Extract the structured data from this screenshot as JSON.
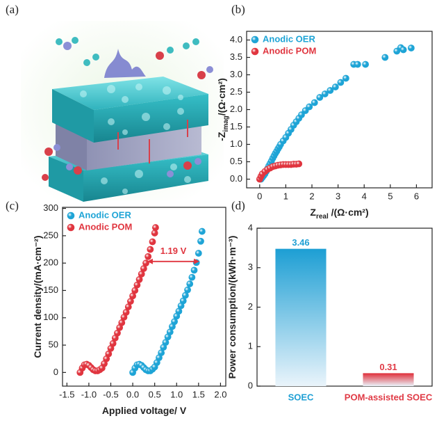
{
  "illustration": {
    "panel_label": "(a)"
  },
  "chart_data": [
    {
      "type": "scatter",
      "panel_label": "(b)",
      "x_label": [
        "Z",
        "real",
        " /(Ω·cm²)"
      ],
      "y_label": [
        "-Z",
        "imag",
        "/(Ω·cm²)"
      ],
      "xlim": [
        -0.5,
        6.6
      ],
      "xticks": [
        0,
        1,
        2,
        3,
        4,
        5,
        6
      ],
      "ylim": [
        -0.25,
        4.25
      ],
      "yticks": [
        {
          "value": 0,
          "label": "0.0"
        },
        {
          "value": 0.5,
          "label": "0.5"
        },
        {
          "value": 1,
          "label": "1.0"
        },
        {
          "value": 1.5,
          "label": "1.5"
        },
        {
          "value": 2,
          "label": "2.0"
        },
        {
          "value": 2.5,
          "label": "2.5"
        },
        {
          "value": 3,
          "label": "3.0"
        },
        {
          "value": 3.5,
          "label": "3.5"
        },
        {
          "value": 4,
          "label": "4.0"
        }
      ],
      "legend": "upper left",
      "series": [
        {
          "name": "Anodic OER",
          "color": "#1ea4d6",
          "x": [
            0.05,
            0.1,
            0.15,
            0.2,
            0.25,
            0.3,
            0.35,
            0.4,
            0.45,
            0.5,
            0.55,
            0.6,
            0.65,
            0.7,
            0.75,
            0.8,
            0.9,
            1.0,
            1.1,
            1.2,
            1.3,
            1.4,
            1.5,
            1.6,
            1.75,
            1.9,
            2.1,
            2.3,
            2.5,
            2.7,
            2.9,
            3.1,
            3.3,
            3.6,
            3.75,
            4.05,
            4.8,
            5.25,
            5.4,
            5.5,
            5.8
          ],
          "values": [
            0.0,
            0.05,
            0.1,
            0.15,
            0.22,
            0.3,
            0.38,
            0.45,
            0.52,
            0.6,
            0.67,
            0.74,
            0.8,
            0.87,
            0.93,
            1.0,
            1.1,
            1.2,
            1.32,
            1.43,
            1.55,
            1.65,
            1.75,
            1.85,
            1.97,
            2.08,
            2.2,
            2.35,
            2.45,
            2.55,
            2.65,
            2.78,
            2.9,
            3.3,
            3.3,
            3.3,
            3.5,
            3.68,
            3.78,
            3.72,
            3.77
          ]
        },
        {
          "name": "Anodic POM",
          "color": "#e0353f",
          "x": [
            0.0,
            0.05,
            0.1,
            0.2,
            0.3,
            0.4,
            0.5,
            0.6,
            0.7,
            0.8,
            0.9,
            1.0,
            1.1,
            1.2,
            1.3,
            1.4,
            1.5
          ],
          "values": [
            0.0,
            0.08,
            0.15,
            0.22,
            0.28,
            0.32,
            0.36,
            0.38,
            0.4,
            0.41,
            0.42,
            0.42,
            0.42,
            0.42,
            0.43,
            0.43,
            0.44
          ]
        }
      ]
    },
    {
      "type": "scatter",
      "panel_label": "(c)",
      "x_label": [
        "Applied voltage/ V"
      ],
      "y_label": [
        "Current density/(mA·cm⁻²)"
      ],
      "xlim": [
        -1.6,
        2.12
      ],
      "xticks": [
        -1.5,
        {
          "value": -1,
          "label": "-1.0"
        },
        -0.5,
        {
          "value": 0,
          "label": "0.0"
        },
        0.5,
        {
          "value": 1,
          "label": "1.0"
        },
        1.5,
        {
          "value": 2,
          "label": "2.0"
        }
      ],
      "ylim": [
        -25,
        302
      ],
      "yticks": [
        0,
        50,
        100,
        150,
        200,
        250,
        300
      ],
      "legend": "upper left",
      "annotation": {
        "text": "1.19 V",
        "x": [
          0.33,
          1.52
        ],
        "y": 203
      },
      "series": [
        {
          "name": "Anodic OER",
          "color": "#1ea4d6",
          "x": [
            0.0,
            0.05,
            0.1,
            0.15,
            0.2,
            0.25,
            0.3,
            0.35,
            0.4,
            0.45,
            0.5,
            0.55,
            0.6,
            0.65,
            0.7,
            0.75,
            0.8,
            0.85,
            0.9,
            0.95,
            1.0,
            1.05,
            1.1,
            1.15,
            1.2,
            1.25,
            1.3,
            1.35,
            1.4,
            1.45,
            1.5,
            1.55,
            1.58
          ],
          "values": [
            0,
            8,
            14,
            15,
            13,
            9,
            5,
            3,
            3,
            6,
            10,
            18,
            27,
            36,
            46,
            55,
            65,
            74,
            84,
            93,
            103,
            112,
            122,
            131,
            141,
            151,
            162,
            174,
            187,
            201,
            218,
            240,
            258
          ]
        },
        {
          "name": "Anodic POM",
          "color": "#e0353f",
          "x": [
            -1.2,
            -1.15,
            -1.1,
            -1.05,
            -1.0,
            -0.95,
            -0.9,
            -0.85,
            -0.8,
            -0.75,
            -0.7,
            -0.65,
            -0.6,
            -0.55,
            -0.5,
            -0.45,
            -0.4,
            -0.35,
            -0.3,
            -0.25,
            -0.2,
            -0.15,
            -0.1,
            -0.05,
            0.0,
            0.05,
            0.1,
            0.15,
            0.2,
            0.25,
            0.3,
            0.35,
            0.4,
            0.45,
            0.5,
            0.52
          ],
          "values": [
            0,
            8,
            14,
            15,
            13,
            9,
            5,
            3,
            3,
            5,
            8,
            16,
            25,
            34,
            44,
            53,
            63,
            72,
            82,
            91,
            101,
            110,
            120,
            130,
            140,
            150,
            160,
            170,
            180,
            190,
            200,
            212,
            225,
            239,
            255,
            265
          ]
        }
      ]
    },
    {
      "type": "bar",
      "panel_label": "(d)",
      "y_label": [
        "Power consumption/(kWh·m⁻³)"
      ],
      "categories": [
        "SOEC",
        "POM-assisted SOEC"
      ],
      "values": [
        3.46,
        0.31
      ],
      "colors": [
        "#1e9fd4",
        "#e03a45"
      ],
      "ylim": [
        0,
        4
      ],
      "yticks": [
        0,
        1,
        2,
        3,
        4
      ]
    }
  ]
}
